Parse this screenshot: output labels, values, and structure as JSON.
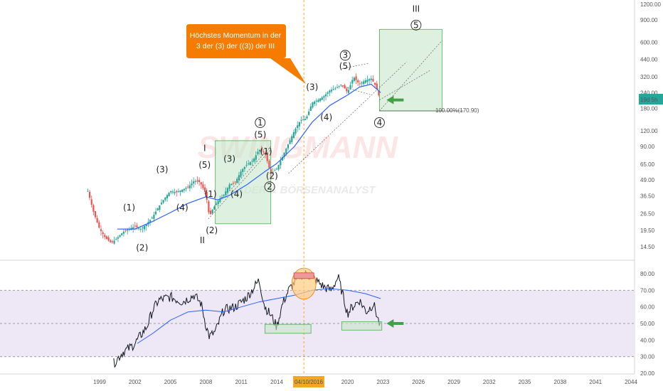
{
  "colors": {
    "price_up": "#26a69a",
    "price_down": "#ef5350",
    "ma": "#2962ff",
    "rsi": "#131722",
    "box_fill": "#c8e6c9",
    "box_stroke": "#4caf50",
    "arrow": "#43a047",
    "callout": "#f57c00",
    "rsi_band": "#ede7f6",
    "vline": "#f5a623",
    "price_badge": "#26a69a"
  },
  "callout": {
    "line1": "Höchstes Momentum in der",
    "line2": "3 der (3) der ((3)) der III"
  },
  "watermark": {
    "line1": "SWINGMANN",
    "line2": "TRADER & BÖRSENANALYST"
  },
  "fib_label": "100.00%(170.90)",
  "current_price_badge": "19d 5h",
  "date_badge": "04/10/2016",
  "wave_labels": [
    {
      "text": "(1)",
      "year": 2001.5,
      "price": 28
    },
    {
      "text": "(2)",
      "year": 2002.6,
      "price": 13.5
    },
    {
      "text": "(3)",
      "year": 2004.3,
      "price": 56
    },
    {
      "text": "(4)",
      "year": 2006.0,
      "price": 28
    },
    {
      "text": "(5)",
      "year": 2007.9,
      "price": 61
    },
    {
      "text": "I",
      "year": 2007.9,
      "price": 83
    },
    {
      "text": "(1)",
      "year": 2008.4,
      "price": 36
    },
    {
      "text": "(2)",
      "year": 2008.5,
      "price": 18.5
    },
    {
      "text": "II",
      "year": 2007.7,
      "price": 15.5
    },
    {
      "text": "(3)",
      "year": 2010.0,
      "price": 68
    },
    {
      "text": "(4)",
      "year": 2010.6,
      "price": 36
    },
    {
      "text": "(5)",
      "year": 2012.6,
      "price": 106
    },
    {
      "text": "(1)",
      "year": 2013.1,
      "price": 78
    },
    {
      "text": "(2)",
      "year": 2013.6,
      "price": 50
    },
    {
      "text": "(3)",
      "year": 2017.0,
      "price": 252
    },
    {
      "text": "(4)",
      "year": 2018.2,
      "price": 145
    },
    {
      "text": "(5)",
      "year": 2019.8,
      "price": 370
    },
    {
      "text": "III",
      "year": 2025.8,
      "price": 1050
    }
  ],
  "circled_labels": [
    {
      "text": "1",
      "year": 2012.6,
      "price": 132
    },
    {
      "text": "2",
      "year": 2013.4,
      "price": 41
    },
    {
      "text": "3",
      "year": 2019.8,
      "price": 450
    },
    {
      "text": "4",
      "year": 2022.7,
      "price": 132
    },
    {
      "text": "5",
      "year": 2025.8,
      "price": 780
    }
  ],
  "chart_data": {
    "type": "line",
    "price_axis": {
      "scale": "log",
      "ticks": [
        "1200.00",
        "900.00",
        "600.00",
        "440.00",
        "320.00",
        "240.00",
        "180.00",
        "120.00",
        "90.00",
        "65.00",
        "49.00",
        "36.50",
        "26.50",
        "19.50",
        "14.50"
      ],
      "tick_values": [
        1200,
        900,
        600,
        440,
        320,
        240,
        180,
        120,
        90,
        65,
        49,
        36.5,
        26.5,
        19.5,
        14.5
      ]
    },
    "rsi_axis": {
      "ticks": [
        "80.00",
        "70.00",
        "60.00",
        "50.00",
        "40.00",
        "30.00",
        "20.00"
      ],
      "tick_values": [
        80,
        70,
        60,
        50,
        40,
        30,
        20
      ],
      "band": [
        30,
        70
      ]
    },
    "x_axis": {
      "ticks": [
        "1999",
        "2002",
        "2005",
        "2008",
        "2011",
        "2014",
        "2017",
        "2020",
        "2023",
        "2026",
        "2029",
        "2032",
        "2035",
        "2038",
        "2041",
        "2044"
      ],
      "tick_values": [
        1999,
        2002,
        2005,
        2008,
        2011,
        2014,
        2017,
        2020,
        2023,
        2026,
        2029,
        2032,
        2035,
        2038,
        2041,
        2044
      ]
    },
    "series": [
      {
        "key": "price",
        "x": [
          1998.0,
          1998.5,
          1999.0,
          1999.5,
          2000.0,
          2000.5,
          2001.0,
          2001.5,
          2002.0,
          2002.5,
          2003.0,
          2003.5,
          2004.0,
          2004.5,
          2005.0,
          2005.5,
          2006.0,
          2006.5,
          2007.0,
          2007.5,
          2008.0,
          2008.3,
          2008.6,
          2009.0,
          2009.5,
          2010.0,
          2010.5,
          2011.0,
          2011.5,
          2012.0,
          2012.5,
          2013.0,
          2013.5,
          2014.0,
          2014.5,
          2015.0,
          2015.5,
          2016.0,
          2016.5,
          2017.0,
          2017.5,
          2018.0,
          2018.5,
          2019.0,
          2019.5,
          2020.0,
          2020.5,
          2021.0,
          2021.5,
          2022.0,
          2022.3,
          2022.6,
          2022.8
        ],
        "values": [
          40,
          27,
          20,
          17,
          15.5,
          17,
          19,
          20,
          21,
          20,
          22,
          25,
          30,
          35,
          40,
          39,
          41,
          43,
          48,
          47,
          38,
          25,
          29,
          33,
          37,
          45,
          47,
          58,
          65,
          70,
          85,
          80,
          55,
          60,
          75,
          95,
          120,
          145,
          150,
          200,
          210,
          225,
          250,
          260,
          280,
          240,
          320,
          280,
          300,
          310,
          280,
          240,
          190
        ]
      },
      {
        "key": "ma",
        "x": [
          2000.5,
          2002.0,
          2003.5,
          2005.0,
          2006.5,
          2008.0,
          2009.0,
          2010.0,
          2011.5,
          2013.0,
          2014.0,
          2015.5,
          2017.0,
          2018.5,
          2020.0,
          2021.0,
          2022.0,
          2022.8
        ],
        "values": [
          20,
          20,
          23,
          27,
          32,
          36,
          34,
          37,
          45,
          57,
          66,
          90,
          140,
          190,
          230,
          265,
          280,
          240
        ]
      },
      {
        "key": "rsi",
        "x": [
          2000.2,
          2001.0,
          2001.5,
          2002.0,
          2003.0,
          2003.5,
          2004.0,
          2005.0,
          2006.0,
          2007.0,
          2007.6,
          2008.0,
          2008.3,
          2008.8,
          2009.5,
          2010.5,
          2011.5,
          2012.5,
          2013.0,
          2013.5,
          2014.0,
          2014.5,
          2015.0,
          2016.0,
          2016.5,
          2017.5,
          2018.0,
          2018.6,
          2019.2,
          2020.0,
          2020.4,
          2021.0,
          2021.6,
          2022.2,
          2022.8
        ],
        "values": [
          26,
          33,
          35,
          38,
          48,
          58,
          64,
          66,
          63,
          67,
          62,
          49,
          42,
          45,
          58,
          60,
          66,
          76,
          60,
          55,
          48,
          62,
          70,
          79,
          80,
          75,
          72,
          70,
          78,
          56,
          60,
          64,
          57,
          62,
          47
        ]
      },
      {
        "key": "rsi_ma",
        "x": [
          2002.2,
          2003.5,
          2005.0,
          2006.5,
          2008.0,
          2009.5,
          2011.0,
          2012.5,
          2014.0,
          2015.5,
          2017.0,
          2018.5,
          2020.0,
          2021.5,
          2022.8
        ],
        "values": [
          38,
          44,
          52,
          57,
          58,
          57,
          60,
          63,
          65,
          67,
          70,
          71,
          70,
          68,
          65
        ]
      }
    ]
  }
}
